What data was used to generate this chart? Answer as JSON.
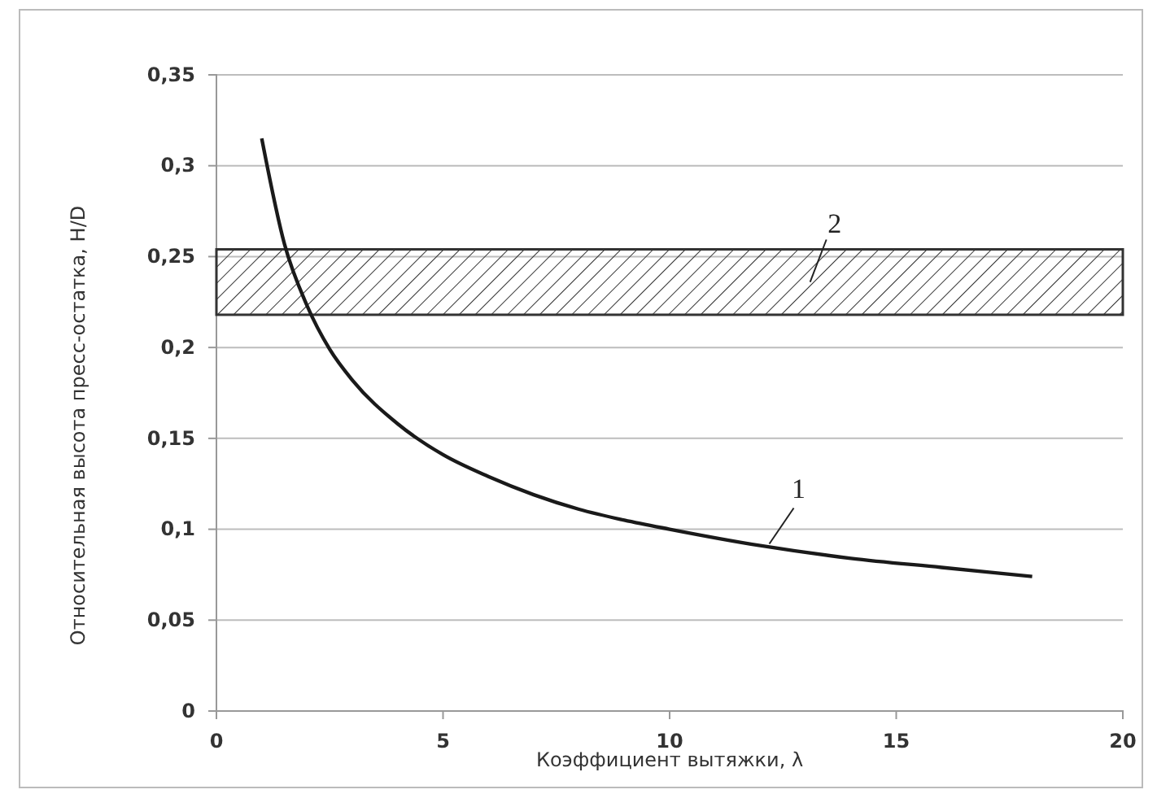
{
  "chart_data": {
    "type": "line",
    "xlabel": "Коэффициент вытяжки, λ",
    "ylabel": "Относительная высота пресс-остатка, H/D",
    "x": [
      1,
      1.5,
      2,
      2.5,
      3,
      4,
      5,
      6,
      7,
      8,
      9,
      10,
      12,
      14,
      16,
      18
    ],
    "series": [
      {
        "color": "#1a1a1a",
        "values": [
          0.315,
          0.257,
          0.223,
          0.199,
          0.182,
          0.158,
          0.141,
          0.129,
          0.119,
          0.111,
          0.105,
          0.1,
          0.091,
          0.084,
          0.079,
          0.074
        ]
      }
    ],
    "xlim": [
      0,
      20
    ],
    "xticks": [
      0,
      5,
      10,
      15,
      20
    ],
    "ylim": [
      0,
      0.35
    ],
    "yticks": [
      0,
      {
        "value": 0.05,
        "label": "0,05"
      },
      {
        "value": 0.1,
        "label": "0,1"
      },
      {
        "value": 0.15,
        "label": "0,15"
      },
      {
        "value": 0.2,
        "label": "0,2"
      },
      {
        "value": 0.25,
        "label": "0,25"
      },
      {
        "value": 0.3,
        "label": "0,3"
      },
      {
        "value": 0.35,
        "label": "0,35"
      }
    ],
    "bands": [
      {
        "axis": "y",
        "from": 0.218,
        "to": 0.254,
        "color": "#333333"
      }
    ],
    "annotations": [
      {
        "text": "1",
        "x": 12.2,
        "y": 0.092
      },
      "2"
    ],
    "grid": "y",
    "marker": "none",
    "line_style": "solid"
  }
}
